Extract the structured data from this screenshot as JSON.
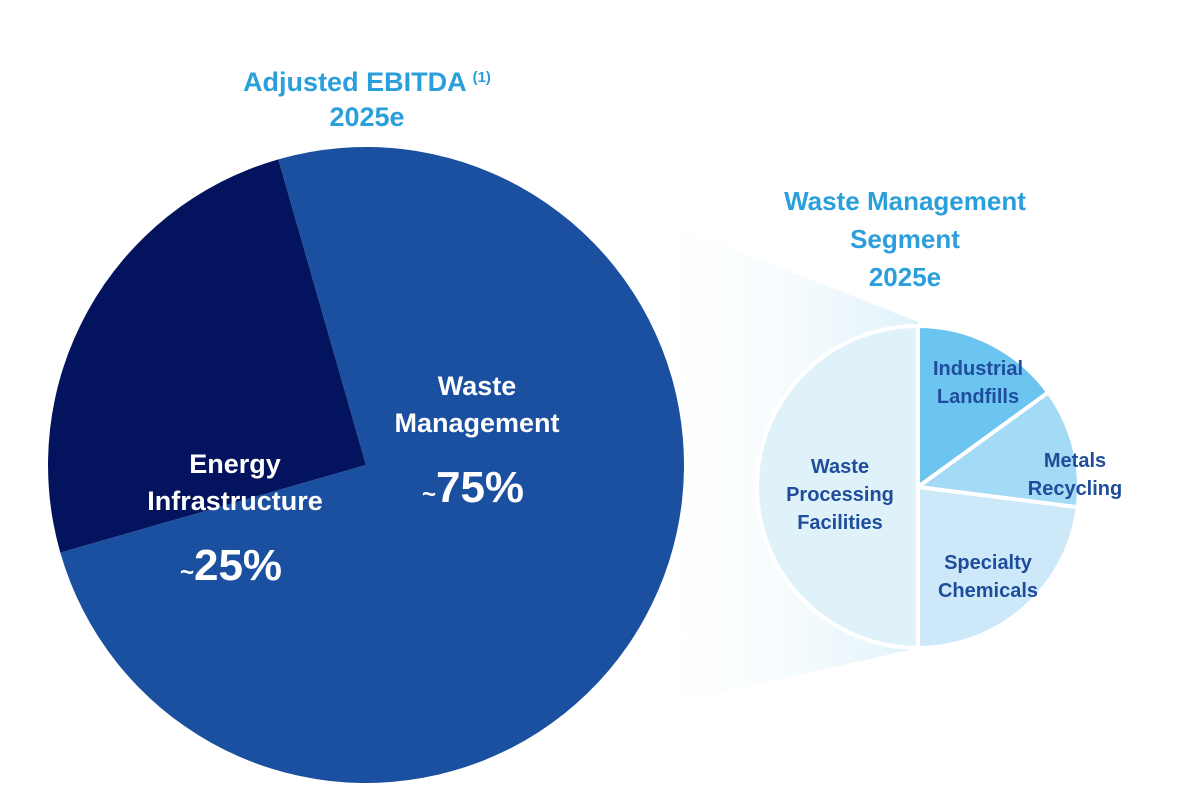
{
  "main_title": {
    "line1": "Adjusted EBITDA",
    "footnote": "(1)",
    "line2": "2025e"
  },
  "sub_title": {
    "line1": "Waste Management",
    "line2": "Segment",
    "line3": "2025e"
  },
  "colors": {
    "title": "#2a9fdb",
    "main_slices": [
      "#1b4f9f",
      "#03135e"
    ],
    "sub_slices": [
      "#dff2fa",
      "#6cc4f1",
      "#a3daf5",
      "#cde9f9"
    ],
    "sub_label": "#1f4d9c",
    "connector": "#e3f4fb"
  },
  "chart_data": [
    {
      "type": "pie",
      "title": "Adjusted EBITDA (1) 2025e",
      "slices": [
        {
          "name": "Waste Management",
          "lines": [
            "Waste",
            "Management"
          ],
          "tilde": "~",
          "display": "75%",
          "value": 75
        },
        {
          "name": "Energy Infrastructure",
          "lines": [
            "Energy",
            "Infrastructure"
          ],
          "tilde": "~",
          "display": "25%",
          "value": 25
        }
      ]
    },
    {
      "type": "pie",
      "title": "Waste Management Segment 2025e",
      "slices": [
        {
          "name": "Waste Processing Facilities",
          "lines": [
            "Waste",
            "Processing",
            "Facilities"
          ],
          "value": 50
        },
        {
          "name": "Industrial Landfills",
          "lines": [
            "Industrial",
            "Landfills"
          ],
          "value": 15
        },
        {
          "name": "Metals Recycling",
          "lines": [
            "Metals",
            "Recycling"
          ],
          "value": 12
        },
        {
          "name": "Specialty Chemicals",
          "lines": [
            "Specialty",
            "Chemicals"
          ],
          "value": 23
        }
      ]
    }
  ]
}
